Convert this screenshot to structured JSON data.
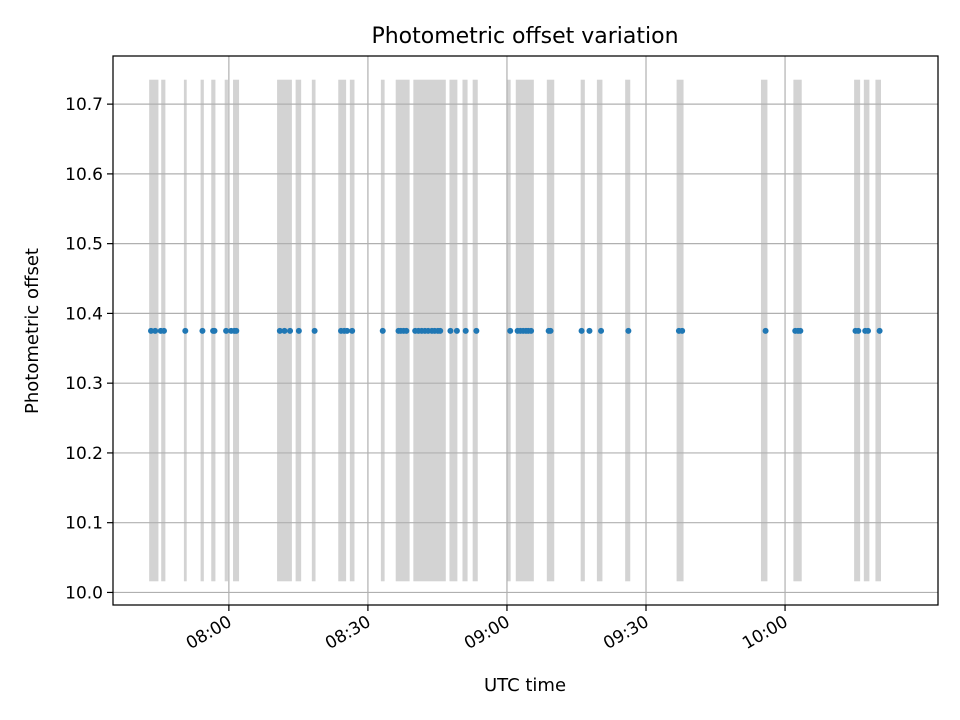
{
  "chart_data": {
    "type": "scatter",
    "title": "Photometric offset variation",
    "xlabel": "UTC time",
    "ylabel": "Photometric offset",
    "xlim": [
      "07:35",
      "10:33"
    ],
    "ylim": [
      9.982,
      10.769
    ],
    "xticks": [
      "08:00",
      "08:30",
      "09:00",
      "09:30",
      "10:00"
    ],
    "yticks": [
      10.0,
      10.1,
      10.2,
      10.3,
      10.4,
      10.5,
      10.6,
      10.7
    ],
    "grid": true,
    "colors": {
      "points": "#1f77b4",
      "bands": "#d3d3d3",
      "grid": "#b0b0b0"
    },
    "shaded_interval_y": [
      10.016,
      10.735
    ],
    "shaded_intervals": [
      [
        "07:42:48",
        "07:44:48"
      ],
      [
        "07:45:24",
        "07:46:18"
      ],
      [
        "07:50:18",
        "07:50:54"
      ],
      [
        "07:53:54",
        "07:54:36"
      ],
      [
        "07:56:12",
        "07:57:06"
      ],
      [
        "07:59:06",
        "07:59:48"
      ],
      [
        "08:00:54",
        "08:02:12"
      ],
      [
        "08:10:24",
        "08:13:36"
      ],
      [
        "08:14:24",
        "08:15:36"
      ],
      [
        "08:17:54",
        "08:18:42"
      ],
      [
        "08:23:36",
        "08:25:18"
      ],
      [
        "08:26:06",
        "08:27:06"
      ],
      [
        "08:32:48",
        "08:33:36"
      ],
      [
        "08:36:00",
        "08:39:00"
      ],
      [
        "08:39:48",
        "08:46:48"
      ],
      [
        "08:47:36",
        "08:49:18"
      ],
      [
        "08:50:24",
        "08:51:30"
      ],
      [
        "08:52:36",
        "08:53:42"
      ],
      [
        "08:59:54",
        "09:00:48"
      ],
      [
        "09:01:54",
        "09:05:48"
      ],
      [
        "09:08:36",
        "09:10:12"
      ],
      [
        "09:15:54",
        "09:16:48"
      ],
      [
        "09:19:24",
        "09:20:36"
      ],
      [
        "09:25:30",
        "09:26:36"
      ],
      [
        "09:36:36",
        "09:38:06"
      ],
      [
        "09:54:48",
        "09:56:12"
      ],
      [
        "10:01:48",
        "10:03:36"
      ],
      [
        "10:14:54",
        "10:16:12"
      ],
      [
        "10:17:00",
        "10:18:12"
      ],
      [
        "10:19:30",
        "10:20:42"
      ]
    ],
    "series": [
      {
        "y": 10.375,
        "x": [
          "07:43:12",
          "07:44:06",
          "07:45:18",
          "07:46:00",
          "07:50:36",
          "07:54:18",
          "07:56:36",
          "07:56:54",
          "07:59:24",
          "08:00:30",
          "08:01:12",
          "08:01:36",
          "08:11:00",
          "08:12:00",
          "08:13:12",
          "08:15:06",
          "08:18:30",
          "08:24:12",
          "08:24:54",
          "08:25:30",
          "08:26:36",
          "08:33:12",
          "08:36:36",
          "08:37:06",
          "08:37:42",
          "08:38:18",
          "08:40:12",
          "08:40:54",
          "08:41:36",
          "08:42:18",
          "08:43:00",
          "08:43:48",
          "08:44:24",
          "08:45:06",
          "08:45:36",
          "08:47:48",
          "08:49:12",
          "08:51:06",
          "08:53:24",
          "09:00:42",
          "09:02:18",
          "09:02:54",
          "09:03:30",
          "09:04:06",
          "09:04:36",
          "09:05:12",
          "09:09:00",
          "09:09:24",
          "09:16:06",
          "09:17:48",
          "09:20:18",
          "09:26:12",
          "09:37:06",
          "09:37:48",
          "09:55:48",
          "10:02:12",
          "10:02:48",
          "10:03:18",
          "10:15:12",
          "10:15:48",
          "10:17:18",
          "10:17:54",
          "10:20:24"
        ]
      }
    ]
  }
}
